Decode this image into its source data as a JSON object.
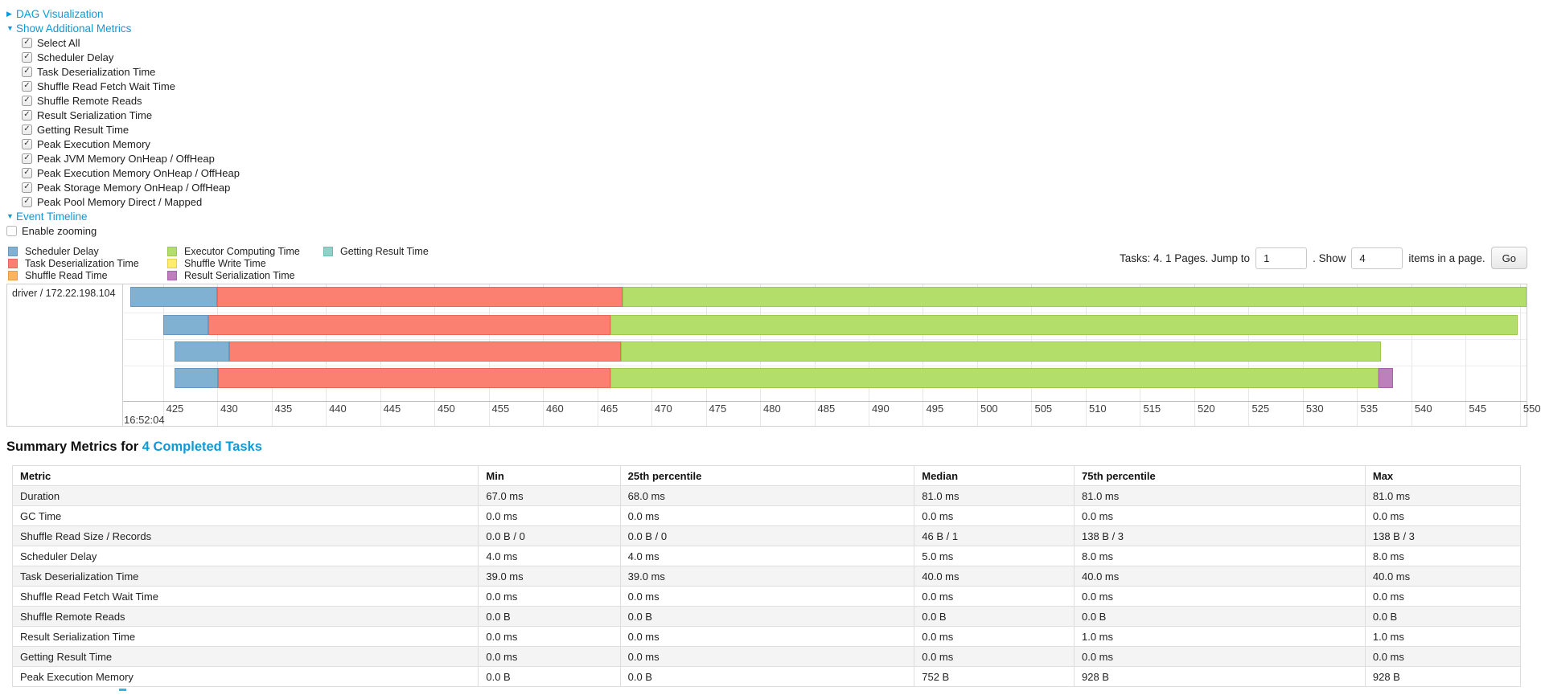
{
  "controls": {
    "dag": {
      "arrow": "▶",
      "label": "DAG Visualization"
    },
    "metrics_toggle": {
      "arrow": "▼",
      "label": "Show Additional Metrics"
    },
    "checkboxes": [
      "Select All",
      "Scheduler Delay",
      "Task Deserialization Time",
      "Shuffle Read Fetch Wait Time",
      "Shuffle Remote Reads",
      "Result Serialization Time",
      "Getting Result Time",
      "Peak Execution Memory",
      "Peak JVM Memory OnHeap / OffHeap",
      "Peak Execution Memory OnHeap / OffHeap",
      "Peak Storage Memory OnHeap / OffHeap",
      "Peak Pool Memory Direct / Mapped"
    ],
    "event_timeline": {
      "arrow": "▼",
      "label": "Event Timeline"
    },
    "enable_zooming": {
      "label": "Enable zooming",
      "checked": false
    }
  },
  "legend": {
    "columns": [
      [
        {
          "key": "scheduler-delay",
          "label": "Scheduler Delay"
        },
        {
          "key": "task-deserialization",
          "label": "Task Deserialization Time"
        },
        {
          "key": "shuffle-read",
          "label": "Shuffle Read Time"
        }
      ],
      [
        {
          "key": "executor-computing",
          "label": "Executor Computing Time"
        },
        {
          "key": "shuffle-write",
          "label": "Shuffle Write Time"
        },
        {
          "key": "result-serialization",
          "label": "Result Serialization Time"
        }
      ],
      [
        {
          "key": "getting-result",
          "label": "Getting Result Time"
        }
      ]
    ]
  },
  "pagination": {
    "summary": "Tasks: 4. 1 Pages. Jump to",
    "jump_value": "1",
    "show_label": ". Show",
    "show_value": "4",
    "items_label": "items in a page.",
    "go_label": "Go"
  },
  "timeline": {
    "row_label": "driver / 172.22.198.104",
    "colors": {
      "scheduler-delay": {
        "fill": "#80B1D3",
        "border": "#6898bf"
      },
      "task-deserialization": {
        "fill": "#FB8072",
        "border": "#e8695c"
      },
      "shuffle-read": {
        "fill": "#FDB462",
        "border": "#e69a43"
      },
      "executor-computing": {
        "fill": "#B3DE69",
        "border": "#9cc94d"
      },
      "shuffle-write": {
        "fill": "#FFED6F",
        "border": "#e3cf4b"
      },
      "result-serialization": {
        "fill": "#BC80BD",
        "border": "#a663a8"
      },
      "getting-result": {
        "fill": "#8DD3C7",
        "border": "#6fbdb0"
      }
    },
    "axis": {
      "min": 421.4,
      "max": 550.6,
      "ticks": [
        425,
        430,
        435,
        440,
        445,
        450,
        455,
        460,
        465,
        470,
        475,
        480,
        485,
        490,
        495,
        500,
        505,
        510,
        515,
        520,
        525,
        530,
        535,
        540,
        545,
        550
      ],
      "time_label": "16:52:04"
    },
    "row_tops": [
      3,
      38,
      71,
      104
    ],
    "tasks": [
      {
        "segments": [
          {
            "key": "scheduler-delay",
            "start": 422.0,
            "end": 430.0
          },
          {
            "key": "task-deserialization",
            "start": 430.0,
            "end": 467.3
          },
          {
            "key": "executor-computing",
            "start": 467.3,
            "end": 550.6
          }
        ]
      },
      {
        "segments": [
          {
            "key": "scheduler-delay",
            "start": 425.0,
            "end": 429.2
          },
          {
            "key": "task-deserialization",
            "start": 429.2,
            "end": 466.2
          },
          {
            "key": "executor-computing",
            "start": 466.2,
            "end": 549.8
          }
        ]
      },
      {
        "segments": [
          {
            "key": "scheduler-delay",
            "start": 426.1,
            "end": 431.1
          },
          {
            "key": "task-deserialization",
            "start": 431.1,
            "end": 467.2
          },
          {
            "key": "executor-computing",
            "start": 467.2,
            "end": 537.2
          }
        ]
      },
      {
        "segments": [
          {
            "key": "scheduler-delay",
            "start": 426.1,
            "end": 430.1
          },
          {
            "key": "task-deserialization",
            "start": 430.1,
            "end": 466.2
          },
          {
            "key": "executor-computing",
            "start": 466.2,
            "end": 537.0
          },
          {
            "key": "result-serialization",
            "start": 537.0,
            "end": 538.3
          }
        ]
      }
    ]
  },
  "summary": {
    "title_prefix": "Summary Metrics for ",
    "title_link": "4 Completed Tasks",
    "table": {
      "col_widths": [
        30.9,
        9.4,
        19.5,
        10.6,
        19.3,
        10.3
      ],
      "headers": [
        "Metric",
        "Min",
        "25th percentile",
        "Median",
        "75th percentile",
        "Max"
      ],
      "rows": [
        [
          "Duration",
          "67.0 ms",
          "68.0 ms",
          "81.0 ms",
          "81.0 ms",
          "81.0 ms"
        ],
        [
          "GC Time",
          "0.0 ms",
          "0.0 ms",
          "0.0 ms",
          "0.0 ms",
          "0.0 ms"
        ],
        [
          "Shuffle Read Size / Records",
          "0.0 B / 0",
          "0.0 B / 0",
          "46 B / 1",
          "138 B / 3",
          "138 B / 3"
        ],
        [
          "Scheduler Delay",
          "4.0 ms",
          "4.0 ms",
          "5.0 ms",
          "8.0 ms",
          "8.0 ms"
        ],
        [
          "Task Deserialization Time",
          "39.0 ms",
          "39.0 ms",
          "40.0 ms",
          "40.0 ms",
          "40.0 ms"
        ],
        [
          "Shuffle Read Fetch Wait Time",
          "0.0 ms",
          "0.0 ms",
          "0.0 ms",
          "0.0 ms",
          "0.0 ms"
        ],
        [
          "Shuffle Remote Reads",
          "0.0 B",
          "0.0 B",
          "0.0 B",
          "0.0 B",
          "0.0 B"
        ],
        [
          "Result Serialization Time",
          "0.0 ms",
          "0.0 ms",
          "0.0 ms",
          "1.0 ms",
          "1.0 ms"
        ],
        [
          "Getting Result Time",
          "0.0 ms",
          "0.0 ms",
          "0.0 ms",
          "0.0 ms",
          "0.0 ms"
        ],
        [
          "Peak Execution Memory",
          "0.0 B",
          "0.0 B",
          "752 B",
          "928 B",
          "928 B"
        ]
      ]
    }
  }
}
